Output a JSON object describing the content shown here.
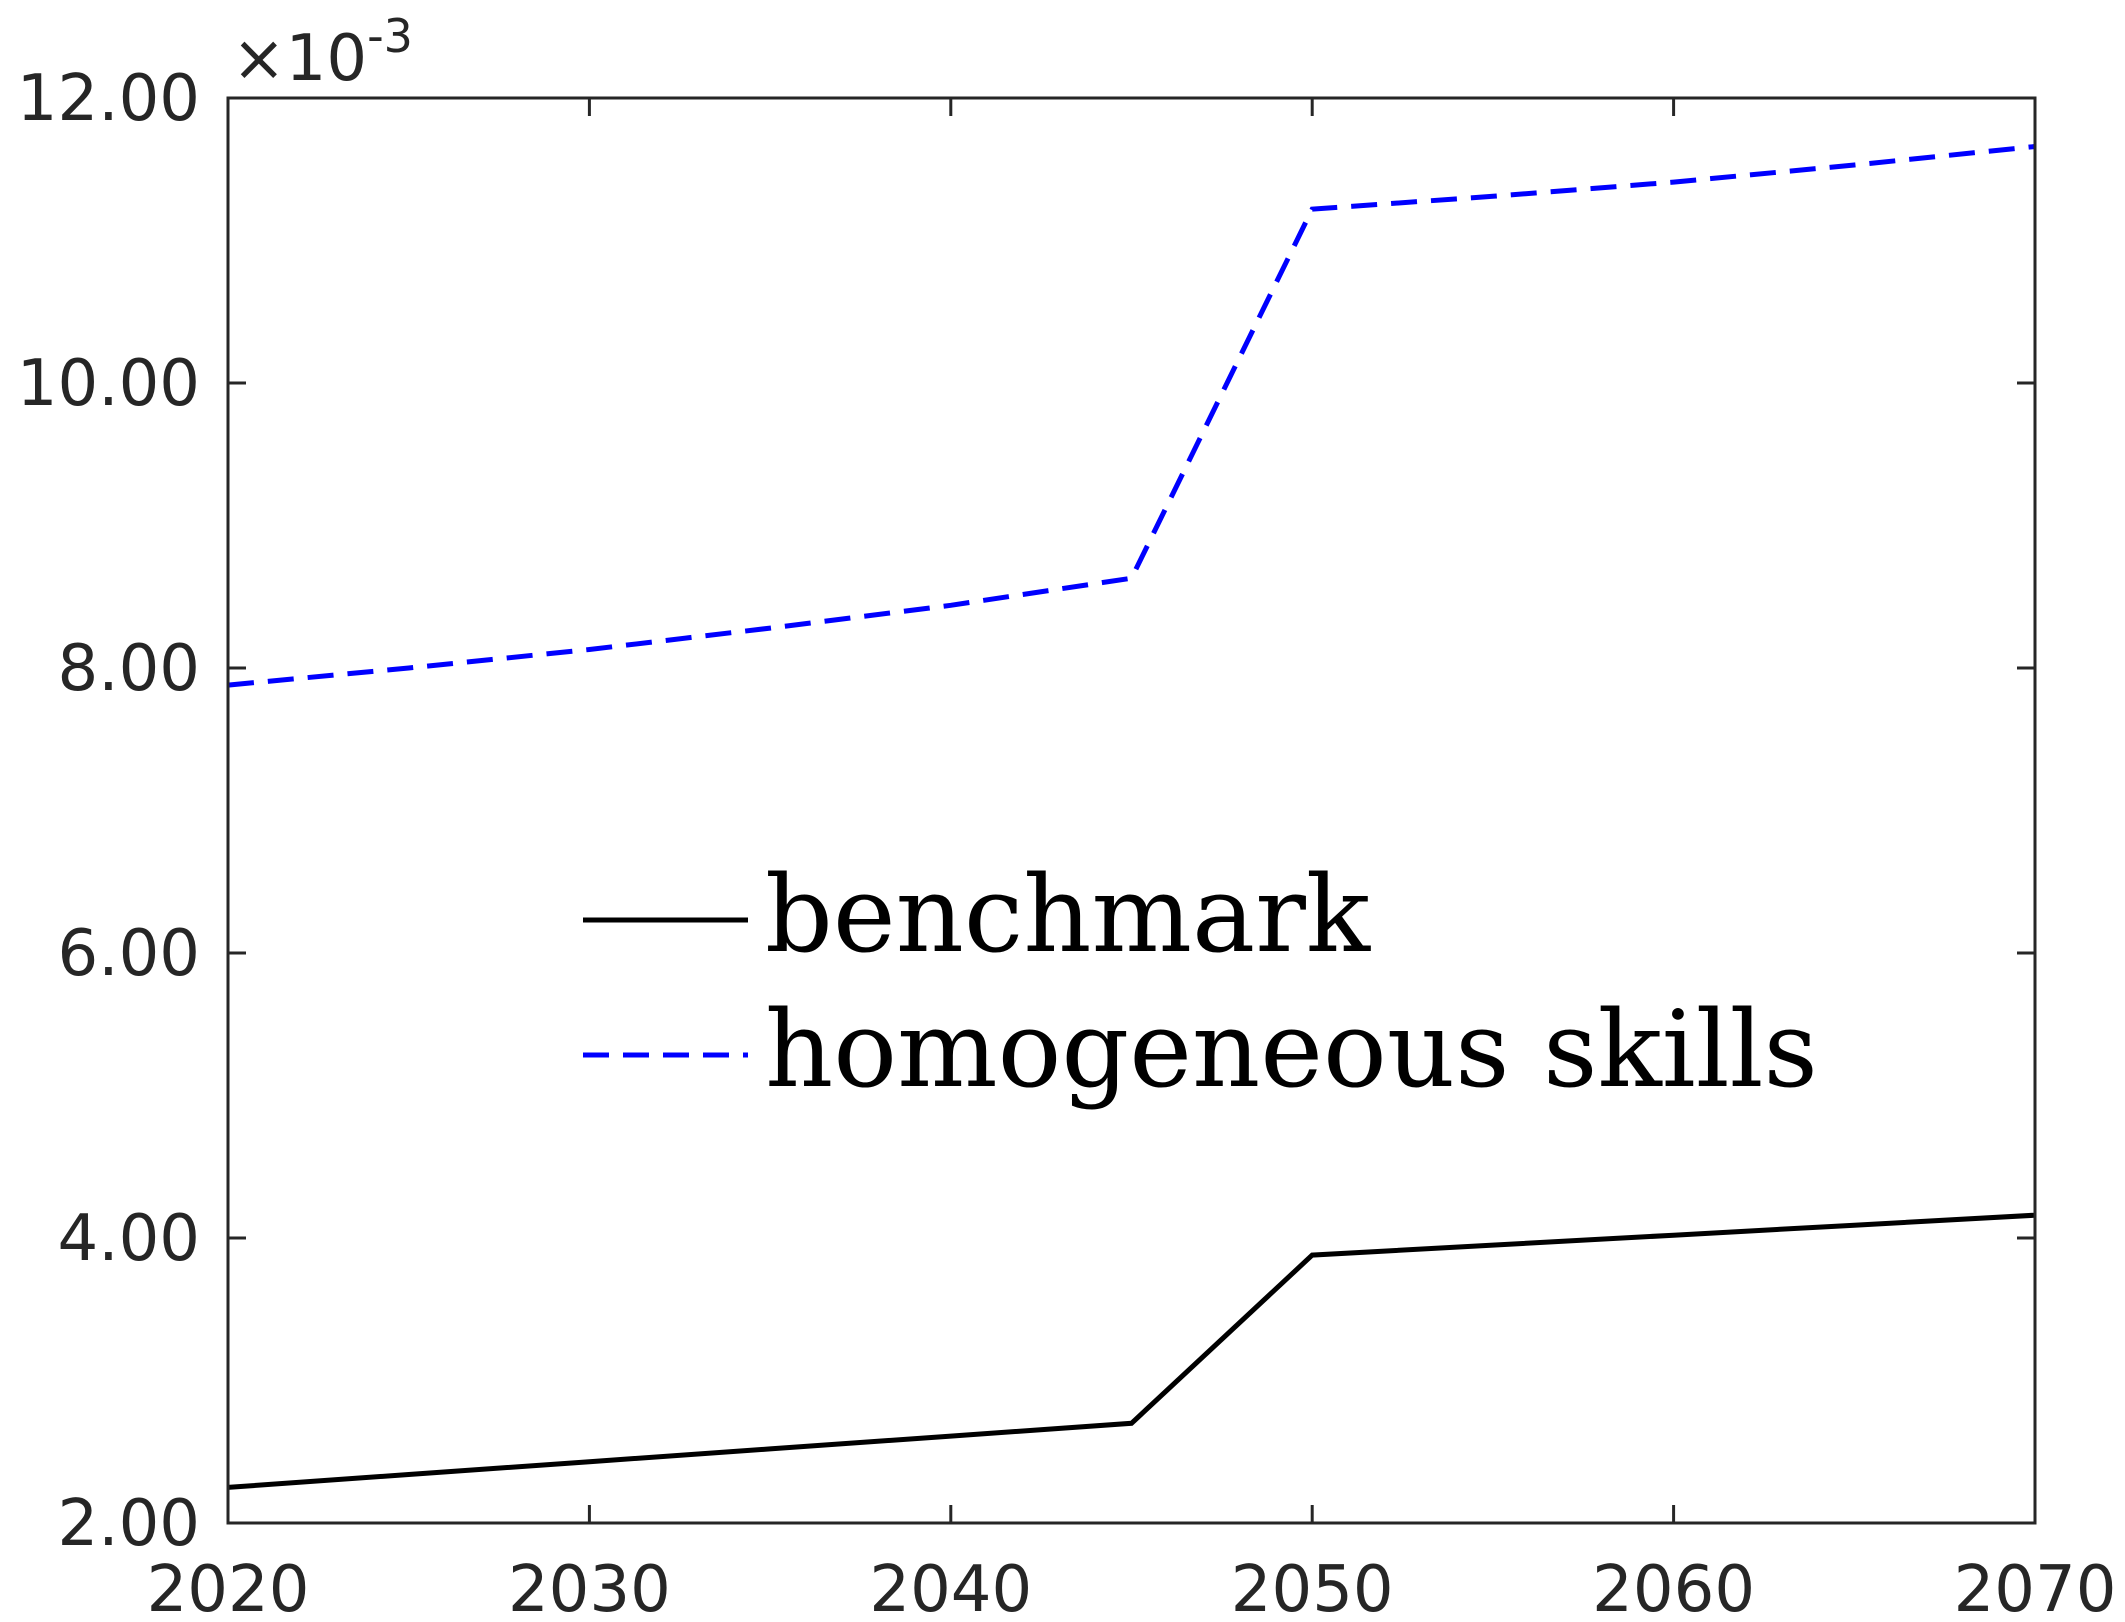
{
  "chart_data": {
    "type": "line",
    "title": "",
    "xlabel": "",
    "ylabel": "",
    "x": [
      2020,
      2025,
      2030,
      2035,
      2040,
      2045,
      2050,
      2055,
      2060,
      2065,
      2070
    ],
    "xlim": [
      2020,
      2070
    ],
    "ylim": [
      2.0,
      12.0
    ],
    "x_ticks": [
      "2020",
      "2030",
      "2040",
      "2050",
      "2060",
      "2070"
    ],
    "y_ticks": [
      "2.00",
      "4.00",
      "6.00",
      "8.00",
      "10.00",
      "12.00"
    ],
    "y_multiplier": {
      "base": "×10",
      "exponent": "-3"
    },
    "grid": false,
    "legend_position": "center-left",
    "series": [
      {
        "name": "benchmark",
        "color": "#000000",
        "style": "solid",
        "values": [
          2.25,
          2.34,
          2.43,
          2.52,
          2.61,
          2.7,
          3.88,
          3.95,
          4.02,
          4.09,
          4.16
        ]
      },
      {
        "name": "homogeneous skills",
        "color": "#0000FF",
        "style": "dashed",
        "values": [
          7.88,
          8.0,
          8.13,
          8.28,
          8.44,
          8.63,
          11.22,
          11.31,
          11.41,
          11.53,
          11.66
        ]
      }
    ]
  }
}
